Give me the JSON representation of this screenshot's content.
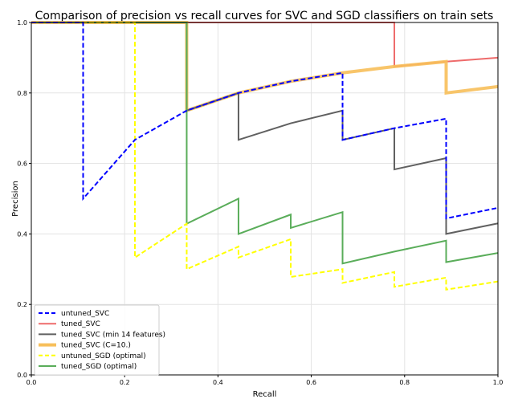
{
  "chart_data": {
    "type": "line",
    "title": "Comparison of precision vs recall curves for SVC and SGD classifiers on train sets",
    "xlabel": "Recall",
    "ylabel": "Precision",
    "xlim": [
      0.0,
      1.0
    ],
    "ylim": [
      0.0,
      1.0
    ],
    "grid": true,
    "legend_position": "bottom-left",
    "xticks": [
      {
        "value": 0.0,
        "label": "0.0"
      },
      {
        "value": 0.2,
        "label": "0.2"
      },
      {
        "value": 0.4,
        "label": "0.4"
      },
      {
        "value": 0.6,
        "label": "0.6"
      },
      {
        "value": 0.8,
        "label": "0.8"
      },
      {
        "value": 1.0,
        "label": "1.0"
      }
    ],
    "yticks": [
      {
        "value": 0.0,
        "label": "0.0"
      },
      {
        "value": 0.2,
        "label": "0.2"
      },
      {
        "value": 0.4,
        "label": "0.4"
      },
      {
        "value": 0.6,
        "label": "0.6"
      },
      {
        "value": 0.8,
        "label": "0.8"
      },
      {
        "value": 1.0,
        "label": "1.0"
      }
    ],
    "series": [
      {
        "name": "tuned_SVC",
        "color": "#ee6b6b",
        "dash": "solid",
        "width": 2,
        "points": [
          [
            0.0,
            1.0
          ],
          [
            0.778,
            1.0
          ],
          [
            0.778,
            0.875
          ],
          [
            0.889,
            0.889
          ],
          [
            1.0,
            0.9
          ]
        ]
      },
      {
        "name": "tuned_SVC (C=10.)",
        "color": "#f7bf5a",
        "dash": "solid",
        "width": 4,
        "points": [
          [
            0.0,
            1.0
          ],
          [
            0.333,
            1.0
          ],
          [
            0.333,
            0.75
          ],
          [
            0.444,
            0.8
          ],
          [
            0.556,
            0.833
          ],
          [
            0.667,
            0.857
          ],
          [
            0.778,
            0.875
          ],
          [
            0.889,
            0.889
          ],
          [
            0.889,
            0.8
          ],
          [
            1.0,
            0.818
          ]
        ]
      },
      {
        "name": "tuned_SVC (min 14 features)",
        "color": "#606060",
        "dash": "solid",
        "width": 2,
        "points": [
          [
            0.0,
            1.0
          ],
          [
            0.333,
            1.0
          ],
          [
            0.333,
            0.75
          ],
          [
            0.444,
            0.8
          ],
          [
            0.444,
            0.667
          ],
          [
            0.556,
            0.714
          ],
          [
            0.667,
            0.75
          ],
          [
            0.667,
            0.667
          ],
          [
            0.778,
            0.7
          ],
          [
            0.778,
            0.583
          ],
          [
            0.889,
            0.615
          ],
          [
            0.889,
            0.4
          ],
          [
            1.0,
            0.43
          ]
        ]
      },
      {
        "name": "tuned_SGD (optimal)",
        "color": "#5aad5a",
        "dash": "solid",
        "width": 2,
        "points": [
          [
            0.0,
            1.0
          ],
          [
            0.333,
            1.0
          ],
          [
            0.333,
            0.429
          ],
          [
            0.444,
            0.5
          ],
          [
            0.444,
            0.4
          ],
          [
            0.556,
            0.455
          ],
          [
            0.556,
            0.417
          ],
          [
            0.667,
            0.462
          ],
          [
            0.667,
            0.316
          ],
          [
            0.778,
            0.35
          ],
          [
            0.889,
            0.381
          ],
          [
            0.889,
            0.32
          ],
          [
            1.0,
            0.346
          ]
        ]
      },
      {
        "name": "untuned_SGD (optimal)",
        "color": "#ffff00",
        "dash": "dashed",
        "width": 2,
        "points": [
          [
            0.0,
            1.0
          ],
          [
            0.222,
            1.0
          ],
          [
            0.222,
            0.333
          ],
          [
            0.333,
            0.429
          ],
          [
            0.333,
            0.3
          ],
          [
            0.444,
            0.364
          ],
          [
            0.444,
            0.333
          ],
          [
            0.556,
            0.385
          ],
          [
            0.556,
            0.278
          ],
          [
            0.667,
            0.3
          ],
          [
            0.667,
            0.261
          ],
          [
            0.778,
            0.292
          ],
          [
            0.778,
            0.25
          ],
          [
            0.889,
            0.276
          ],
          [
            0.889,
            0.242
          ],
          [
            1.0,
            0.265
          ]
        ]
      },
      {
        "name": "untuned_SVC",
        "color": "#0000ff",
        "dash": "dashed",
        "width": 2,
        "points": [
          [
            0.0,
            1.0
          ],
          [
            0.111,
            1.0
          ],
          [
            0.111,
            0.5
          ],
          [
            0.222,
            0.667
          ],
          [
            0.333,
            0.75
          ],
          [
            0.444,
            0.8
          ],
          [
            0.556,
            0.833
          ],
          [
            0.667,
            0.857
          ],
          [
            0.667,
            0.667
          ],
          [
            0.778,
            0.7
          ],
          [
            0.889,
            0.727
          ],
          [
            0.889,
            0.444
          ],
          [
            1.0,
            0.474
          ]
        ]
      }
    ],
    "legend": [
      {
        "name": "untuned_SVC",
        "color": "#0000ff",
        "dash": "dashed",
        "width": 2
      },
      {
        "name": "tuned_SVC",
        "color": "#ee6b6b",
        "dash": "solid",
        "width": 2
      },
      {
        "name": "tuned_SVC (min 14 features)",
        "color": "#606060",
        "dash": "solid",
        "width": 2
      },
      {
        "name": "tuned_SVC (C=10.)",
        "color": "#f7bf5a",
        "dash": "solid",
        "width": 4
      },
      {
        "name": "untuned_SGD (optimal)",
        "color": "#ffff00",
        "dash": "dashed",
        "width": 2
      },
      {
        "name": "tuned_SGD (optimal)",
        "color": "#5aad5a",
        "dash": "solid",
        "width": 2
      }
    ]
  }
}
